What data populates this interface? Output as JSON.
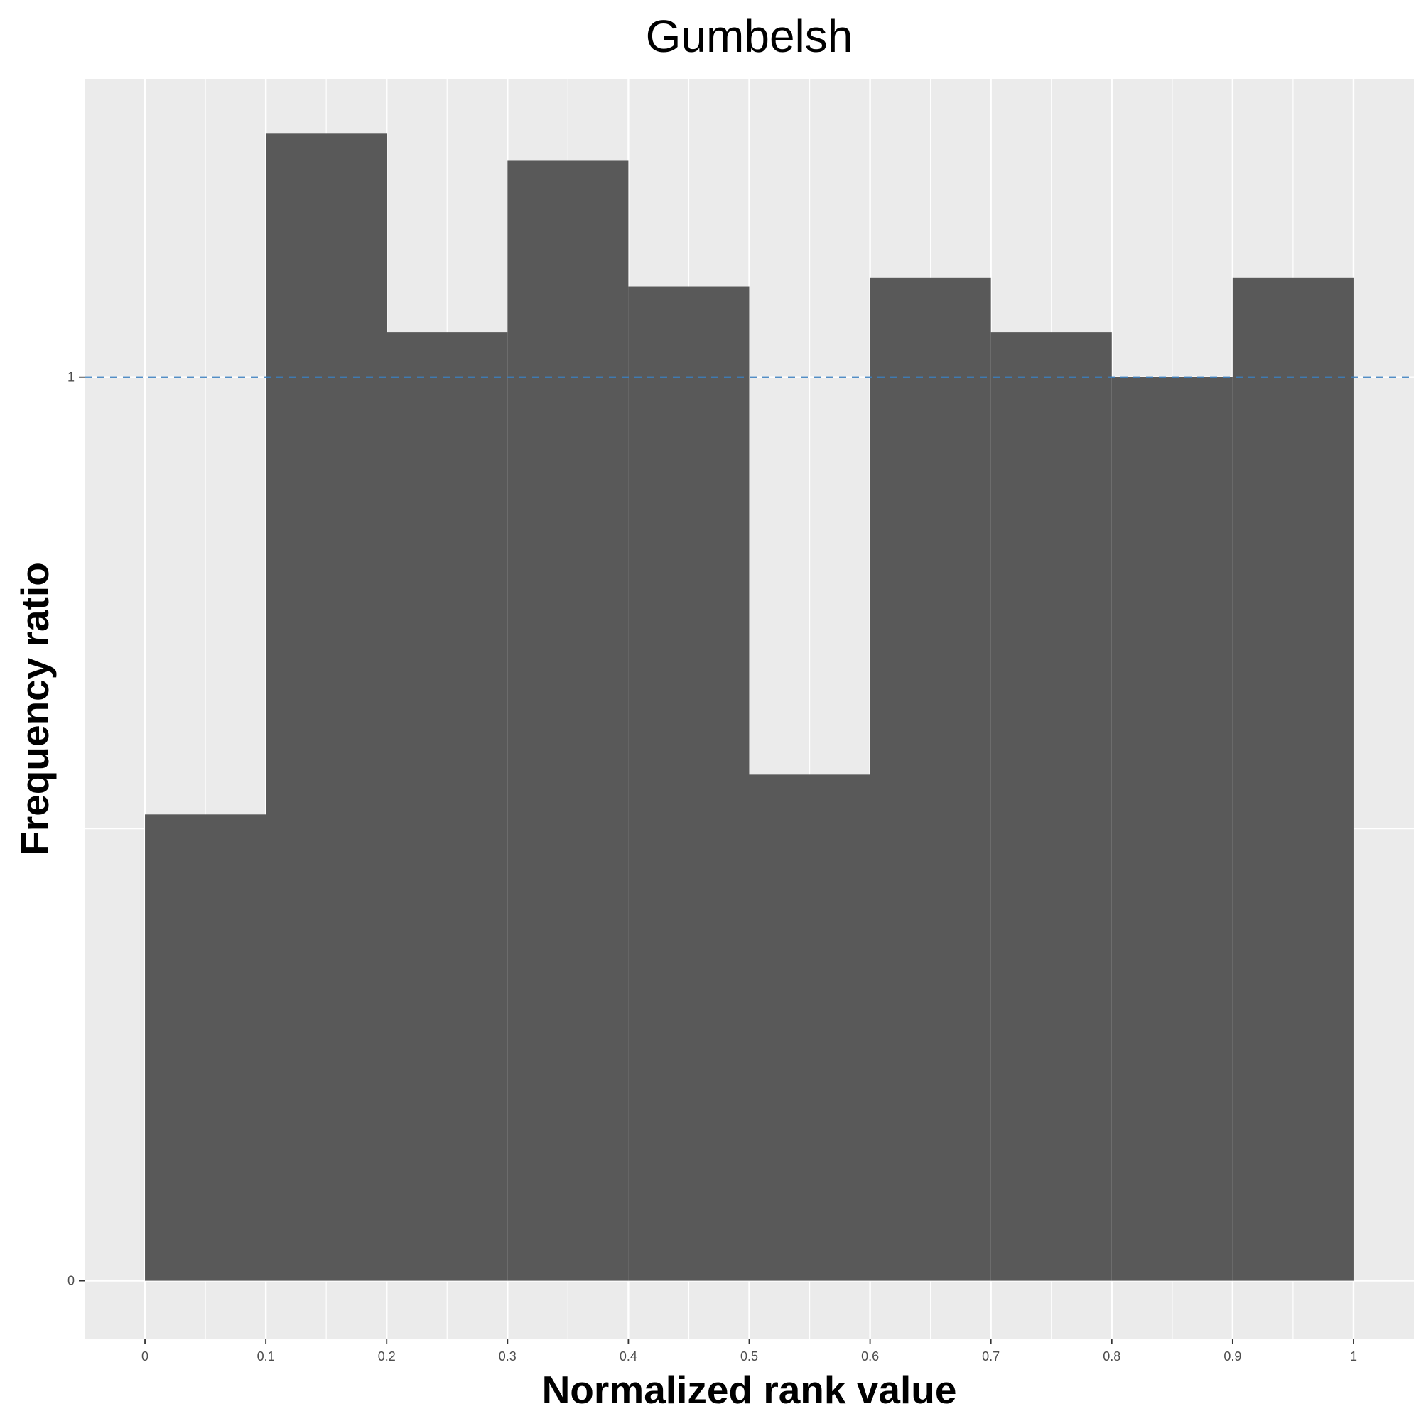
{
  "chart_data": {
    "type": "bar",
    "subtype": "histogram",
    "title": "Gumbelsh",
    "xlabel": "Normalized rank value",
    "ylabel": "Frequency ratio",
    "bins": [
      {
        "x0": 0.0,
        "x1": 0.1,
        "value": 0.516
      },
      {
        "x0": 0.1,
        "x1": 0.2,
        "value": 1.27
      },
      {
        "x0": 0.2,
        "x1": 0.3,
        "value": 1.05
      },
      {
        "x0": 0.3,
        "x1": 0.4,
        "value": 1.24
      },
      {
        "x0": 0.4,
        "x1": 0.5,
        "value": 1.1
      },
      {
        "x0": 0.5,
        "x1": 0.6,
        "value": 0.56
      },
      {
        "x0": 0.6,
        "x1": 0.7,
        "value": 1.11
      },
      {
        "x0": 0.7,
        "x1": 0.8,
        "value": 1.05
      },
      {
        "x0": 0.8,
        "x1": 0.9,
        "value": 1.0
      },
      {
        "x0": 0.9,
        "x1": 1.0,
        "value": 1.11
      }
    ],
    "xlim": [
      -0.05,
      1.05
    ],
    "ylim": [
      -0.064,
      1.33
    ],
    "x_ticks": [
      0,
      0.1,
      0.2,
      0.3,
      0.4,
      0.5,
      0.6,
      0.7,
      0.8,
      0.9,
      1
    ],
    "x_tick_labels": [
      "0",
      "0.1",
      "0.2",
      "0.3",
      "0.4",
      "0.5",
      "0.6",
      "0.7",
      "0.8",
      "0.9",
      "1"
    ],
    "y_ticks": [
      0,
      1
    ],
    "y_tick_labels": [
      "0",
      "1"
    ],
    "reference_line": {
      "y": 1,
      "style": "dashed",
      "color": "#3a7fbf"
    },
    "grid": true,
    "bar_color": "#595959",
    "panel_color": "#ebebeb",
    "grid_color": "#ffffff"
  }
}
